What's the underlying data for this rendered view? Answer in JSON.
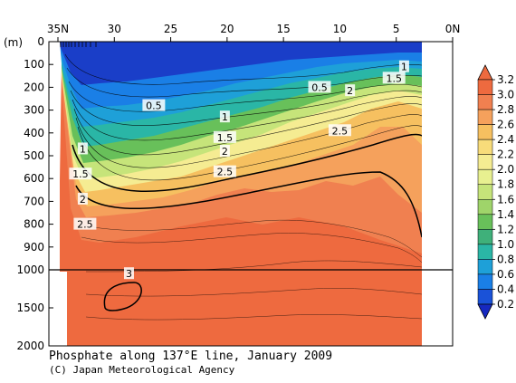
{
  "chart_data": {
    "type": "heatmap",
    "title": "Phosphate along 137°E line, January 2009",
    "credit": "(C) Japan Meteorological Agency",
    "ylabel": "(m)",
    "x_ticks": [
      "35N",
      "30",
      "25",
      "20",
      "15",
      "10",
      "5",
      "0N"
    ],
    "x_tick_values": [
      35,
      30,
      25,
      20,
      15,
      10,
      5,
      0
    ],
    "y_ticks_upper": [
      "0",
      "100",
      "200",
      "300",
      "400",
      "500",
      "600",
      "700",
      "800",
      "900",
      "1000"
    ],
    "y_tick_values_upper": [
      0,
      100,
      200,
      300,
      400,
      500,
      600,
      700,
      800,
      900,
      1000
    ],
    "y_ticks_lower": [
      "1500",
      "2000"
    ],
    "y_tick_values_lower": [
      1500,
      2000
    ],
    "xlim": [
      35,
      0
    ],
    "ylim": [
      0,
      2000
    ],
    "colorbar": {
      "labels": [
        "3.2",
        "3.0",
        "2.8",
        "2.6",
        "2.4",
        "2.2",
        "2.0",
        "1.8",
        "1.6",
        "1.4",
        "1.2",
        "1.0",
        "0.8",
        "0.6",
        "0.4",
        "0.2"
      ],
      "colors": [
        "#ee6a3f",
        "#f08050",
        "#f5a15c",
        "#f6c060",
        "#f8dc7a",
        "#f5ec92",
        "#e8f090",
        "#c6e47a",
        "#9fd46a",
        "#68c05a",
        "#3fb07a",
        "#2ab6a6",
        "#1ea0d8",
        "#1a7fe6",
        "#1a52d8",
        "#1628c0"
      ]
    },
    "contour_labels": [
      {
        "text": "0.5",
        "lat": 26.5,
        "depth": 280
      },
      {
        "text": "0.5",
        "lat": 11.8,
        "depth": 200
      },
      {
        "text": "1",
        "lat": 20.2,
        "depth": 330
      },
      {
        "text": "1",
        "lat": 32.8,
        "depth": 470
      },
      {
        "text": "1",
        "lat": 4.3,
        "depth": 110
      },
      {
        "text": "1.5",
        "lat": 20.2,
        "depth": 420
      },
      {
        "text": "1.5",
        "lat": 33.0,
        "depth": 580
      },
      {
        "text": "1.5",
        "lat": 5.2,
        "depth": 160
      },
      {
        "text": "2",
        "lat": 20.2,
        "depth": 480
      },
      {
        "text": "2",
        "lat": 32.8,
        "depth": 690
      },
      {
        "text": "2",
        "lat": 9.1,
        "depth": 215
      },
      {
        "text": "2.5",
        "lat": 20.2,
        "depth": 570
      },
      {
        "text": "2.5",
        "lat": 32.6,
        "depth": 800
      },
      {
        "text": "2.5",
        "lat": 10.0,
        "depth": 390
      },
      {
        "text": "3",
        "lat": 28.7,
        "depth": 1050
      }
    ]
  }
}
